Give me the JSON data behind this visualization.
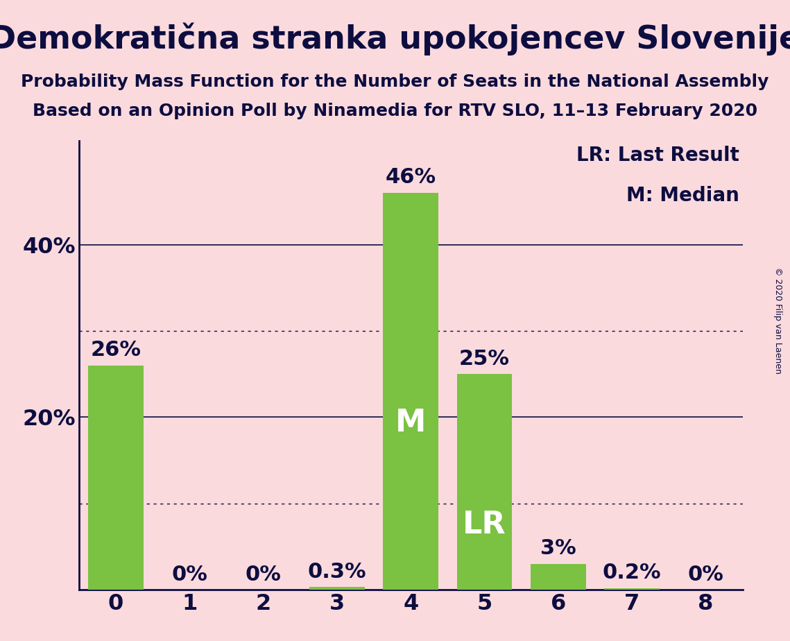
{
  "title": "Demokratična stranka upokojencev Slovenije",
  "subtitle1": "Probability Mass Function for the Number of Seats in the National Assembly",
  "subtitle2": "Based on an Opinion Poll by Ninamedia for RTV SLO, 11–13 February 2020",
  "copyright": "© 2020 Filip van Laenen",
  "categories": [
    0,
    1,
    2,
    3,
    4,
    5,
    6,
    7,
    8
  ],
  "values": [
    0.26,
    0.0,
    0.0,
    0.003,
    0.46,
    0.25,
    0.03,
    0.002,
    0.0
  ],
  "bar_labels": [
    "26%",
    "0%",
    "0%",
    "0.3%",
    "46%",
    "25%",
    "3%",
    "0.2%",
    "0%"
  ],
  "bar_color": "#7BC142",
  "background_color": "#FADADD",
  "text_color": "#0D0D40",
  "bar_label_color_outside": "#0D0D40",
  "median_bar": 4,
  "lr_bar": 5,
  "median_label": "M",
  "lr_label": "LR",
  "legend_line1": "LR: Last Result",
  "legend_line2": "M: Median",
  "yticks": [
    0.0,
    0.2,
    0.4
  ],
  "ytick_labels": [
    "",
    "20%",
    "40%"
  ],
  "solid_gridlines": [
    0.2,
    0.4
  ],
  "dotted_gridlines": [
    0.1,
    0.3
  ],
  "ylim": [
    0,
    0.52
  ],
  "title_fontsize": 33,
  "subtitle_fontsize": 18,
  "tick_fontsize": 23,
  "bar_label_fontsize": 22,
  "inside_label_fontsize": 32,
  "legend_fontsize": 20,
  "copyright_fontsize": 9
}
